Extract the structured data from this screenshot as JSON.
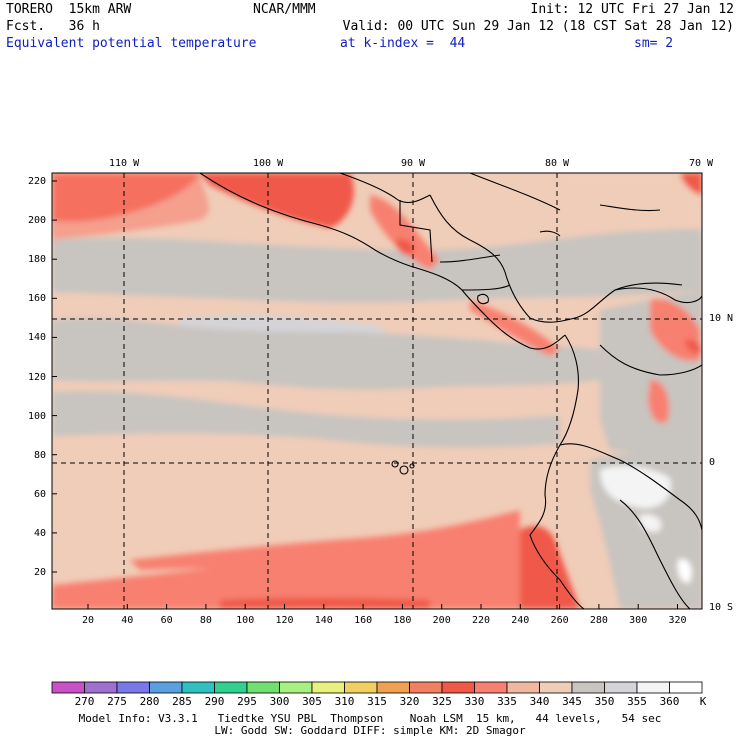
{
  "header": {
    "model": "TORERO  15km ARW",
    "center": "NCAR/MMM",
    "init": "Init: 12 UTC Fri 27 Jan 12",
    "fcst": "Fcst.   36 h",
    "valid": "Valid: 00 UTC Sun 29 Jan 12 (18 CST Sat 28 Jan 12)",
    "field": "Equivalent potential temperature",
    "level": "at k-index =  44",
    "smooth": "sm= 2"
  },
  "map": {
    "lon_labels": [
      "110 W",
      "100 W",
      "90 W",
      "80 W",
      "70 W"
    ],
    "lat_labels": [
      "10 N",
      "0",
      "10 S"
    ],
    "y_ticks": [
      "220",
      "200",
      "180",
      "160",
      "140",
      "120",
      "100",
      "80",
      "60",
      "40",
      "20"
    ],
    "x_ticks": [
      "20",
      "40",
      "60",
      "80",
      "100",
      "120",
      "140",
      "160",
      "180",
      "200",
      "220",
      "240",
      "260",
      "280",
      "300",
      "320"
    ]
  },
  "colorbar": {
    "unit": "K",
    "levels": [
      "270",
      "275",
      "280",
      "285",
      "290",
      "295",
      "300",
      "305",
      "310",
      "315",
      "320",
      "325",
      "330",
      "335",
      "340",
      "345",
      "350",
      "355",
      "360"
    ],
    "colors": [
      "#c850c8",
      "#a070d0",
      "#7878e8",
      "#5aa0e0",
      "#30c0c0",
      "#30d090",
      "#70e070",
      "#a8f080",
      "#e8f080",
      "#f0d060",
      "#f0a050",
      "#f08060",
      "#f05848",
      "#f88070",
      "#f0b8a0",
      "#f0cdb8",
      "#c8c4c0",
      "#d4d4d8",
      "#f4f4f4",
      "#ffffff"
    ]
  },
  "footer": {
    "line1": "Model Info: V3.3.1   Tiedtke YSU PBL  Thompson    Noah LSM  15 km,   44 levels,   54 sec",
    "line2": "LW: Godd SW: Goddard DIFF: simple KM: 2D Smagor"
  }
}
